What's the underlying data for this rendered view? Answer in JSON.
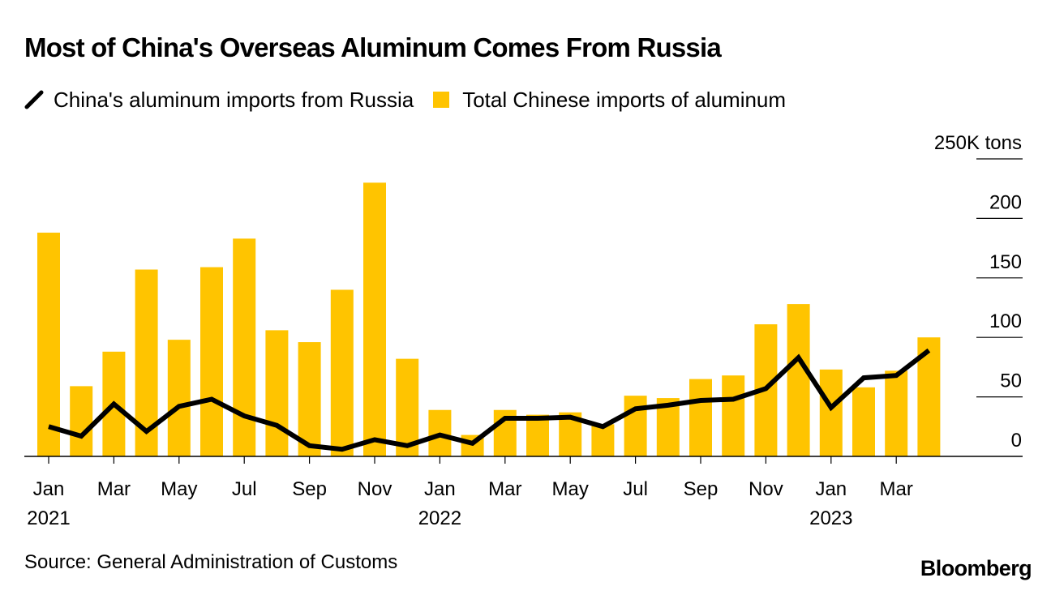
{
  "title": "Most of China's Overseas Aluminum Comes From Russia",
  "legend": {
    "line_label": "China's aluminum imports from Russia",
    "bar_label": "Total Chinese imports of aluminum"
  },
  "source": "Source: General Administration of Customs",
  "brand": "Bloomberg",
  "colors": {
    "bar": "#FFC400",
    "line": "#000000",
    "axis": "#000000"
  },
  "chart_data": {
    "type": "bar",
    "title": "Most of China's Overseas Aluminum Comes From Russia",
    "xlabel": "",
    "ylabel": "250K tons",
    "ylim": [
      0,
      250
    ],
    "y_ticks": [
      {
        "value": 250,
        "label": "250K tons"
      },
      {
        "value": 200,
        "label": "200"
      },
      {
        "value": 150,
        "label": "150"
      },
      {
        "value": 100,
        "label": "100"
      },
      {
        "value": 50,
        "label": "50"
      },
      {
        "value": 0,
        "label": "0"
      }
    ],
    "categories": [
      "2021-01",
      "2021-02",
      "2021-03",
      "2021-04",
      "2021-05",
      "2021-06",
      "2021-07",
      "2021-08",
      "2021-09",
      "2021-10",
      "2021-11",
      "2021-12",
      "2022-01",
      "2022-02",
      "2022-03",
      "2022-04",
      "2022-05",
      "2022-06",
      "2022-07",
      "2022-08",
      "2022-09",
      "2022-10",
      "2022-11",
      "2022-12",
      "2023-01",
      "2023-02",
      "2023-03",
      "2023-04"
    ],
    "x_tick_labels": [
      {
        "index": 0,
        "month": "Jan",
        "year": "2021"
      },
      {
        "index": 2,
        "month": "Mar",
        "year": ""
      },
      {
        "index": 4,
        "month": "May",
        "year": ""
      },
      {
        "index": 6,
        "month": "Jul",
        "year": ""
      },
      {
        "index": 8,
        "month": "Sep",
        "year": ""
      },
      {
        "index": 10,
        "month": "Nov",
        "year": ""
      },
      {
        "index": 12,
        "month": "Jan",
        "year": "2022"
      },
      {
        "index": 14,
        "month": "Mar",
        "year": ""
      },
      {
        "index": 16,
        "month": "May",
        "year": ""
      },
      {
        "index": 18,
        "month": "Jul",
        "year": ""
      },
      {
        "index": 20,
        "month": "Sep",
        "year": ""
      },
      {
        "index": 22,
        "month": "Nov",
        "year": ""
      },
      {
        "index": 24,
        "month": "Jan",
        "year": "2023"
      },
      {
        "index": 26,
        "month": "Mar",
        "year": ""
      }
    ],
    "series": [
      {
        "name": "Total Chinese imports of aluminum",
        "type": "bar",
        "values": [
          188,
          59,
          88,
          157,
          98,
          159,
          183,
          106,
          96,
          140,
          230,
          82,
          39,
          18,
          39,
          35,
          37,
          27,
          51,
          49,
          65,
          68,
          111,
          128,
          73,
          58,
          72,
          100
        ]
      },
      {
        "name": "China's aluminum imports from Russia",
        "type": "line",
        "values": [
          25,
          17,
          44,
          21,
          42,
          48,
          34,
          26,
          9,
          6,
          14,
          9,
          18,
          11,
          32,
          32,
          33,
          25,
          40,
          43,
          47,
          48,
          57,
          83,
          41,
          66,
          68,
          89
        ]
      }
    ]
  }
}
